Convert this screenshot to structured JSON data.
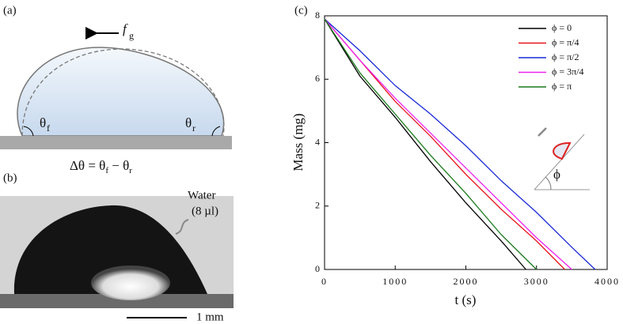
{
  "panels": {
    "a": {
      "label": "(a)",
      "force": "f",
      "force_sub": "g",
      "theta_f": "θ",
      "theta_f_sub": "f",
      "theta_r": "θ",
      "theta_r_sub": "r",
      "eq": [
        "Δθ = θ",
        "f",
        " − θ",
        "r"
      ]
    },
    "b": {
      "label": "(b)",
      "liquid": "Water",
      "volume": "(8 µl)",
      "scale": "1 mm"
    },
    "c": {
      "label": "(c)",
      "inset": "ϕ"
    }
  },
  "chart_data": {
    "type": "line",
    "xlabel": "t (s)",
    "ylabel": "Mass (mg)",
    "xlim": [
      0,
      4000
    ],
    "xticks": [
      0,
      1000,
      2000,
      3000,
      4000
    ],
    "ylim": [
      0,
      8
    ],
    "yticks": [
      0,
      2,
      4,
      6,
      8
    ],
    "legend": "upper right",
    "series": [
      {
        "name": "ϕ = 0",
        "color": "#000000",
        "x": [
          0,
          500,
          1000,
          1500,
          2000,
          2500,
          2850
        ],
        "values": [
          7.9,
          6.1,
          4.8,
          3.4,
          2.1,
          0.9,
          0
        ]
      },
      {
        "name": "ϕ = π/4",
        "color": "#e8141c",
        "x": [
          0,
          500,
          1000,
          1500,
          2000,
          2500,
          3000,
          3400
        ],
        "values": [
          7.9,
          6.6,
          5.3,
          4.2,
          3.0,
          1.9,
          0.9,
          0
        ]
      },
      {
        "name": "ϕ = π/2",
        "color": "#1a2bd6",
        "x": [
          0,
          500,
          1000,
          1500,
          2000,
          2500,
          3000,
          3500,
          3830
        ],
        "values": [
          7.9,
          6.9,
          5.8,
          4.9,
          3.9,
          2.8,
          1.8,
          0.7,
          0
        ]
      },
      {
        "name": "ϕ = 3π/4",
        "color": "#ee22ee",
        "x": [
          0,
          500,
          1000,
          1500,
          2000,
          2500,
          3000,
          3500
        ],
        "values": [
          7.9,
          6.6,
          5.4,
          4.3,
          3.2,
          2.1,
          1.0,
          0
        ]
      },
      {
        "name": "ϕ = π",
        "color": "#1a7a1a",
        "x": [
          0,
          500,
          1000,
          1500,
          2000,
          2500,
          3000
        ],
        "values": [
          7.9,
          6.2,
          4.9,
          3.6,
          2.4,
          1.1,
          0
        ]
      }
    ]
  }
}
